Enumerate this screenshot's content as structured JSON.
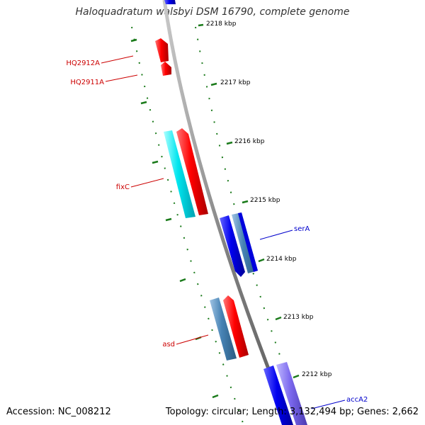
{
  "title": "Haloquadratum walsbyi DSM 16790, complete genome",
  "footer": {
    "accession": "Accession: NC_008212",
    "summary": "Topology: circular; Length: 3,132,494 bp; Genes: 2,662"
  },
  "ticks": [
    "2218 kbp",
    "2217 kbp",
    "2216 kbp",
    "2215 kbp",
    "2214 kbp",
    "2213 kbp",
    "2212 kbp"
  ],
  "genes": [
    {
      "name": "HQ2912A",
      "color": "#cc0000"
    },
    {
      "name": "HQ2911A",
      "color": "#cc0000"
    },
    {
      "name": "fixC",
      "color": "#cc0000"
    },
    {
      "name": "serA",
      "color": "#0000cc"
    },
    {
      "name": "asd",
      "color": "#cc0000"
    },
    {
      "name": "accA2",
      "color": "#0000cc"
    }
  ],
  "colors": {
    "backbone": "#8a8a8a",
    "tick_mark": "#1a7a1a",
    "red_feature": "#ff0000",
    "cyan_feature": "#00e5ee",
    "blue_feature": "#0000ee",
    "steel_feature": "#4682b4",
    "lavender_feature": "#7b68ee"
  }
}
